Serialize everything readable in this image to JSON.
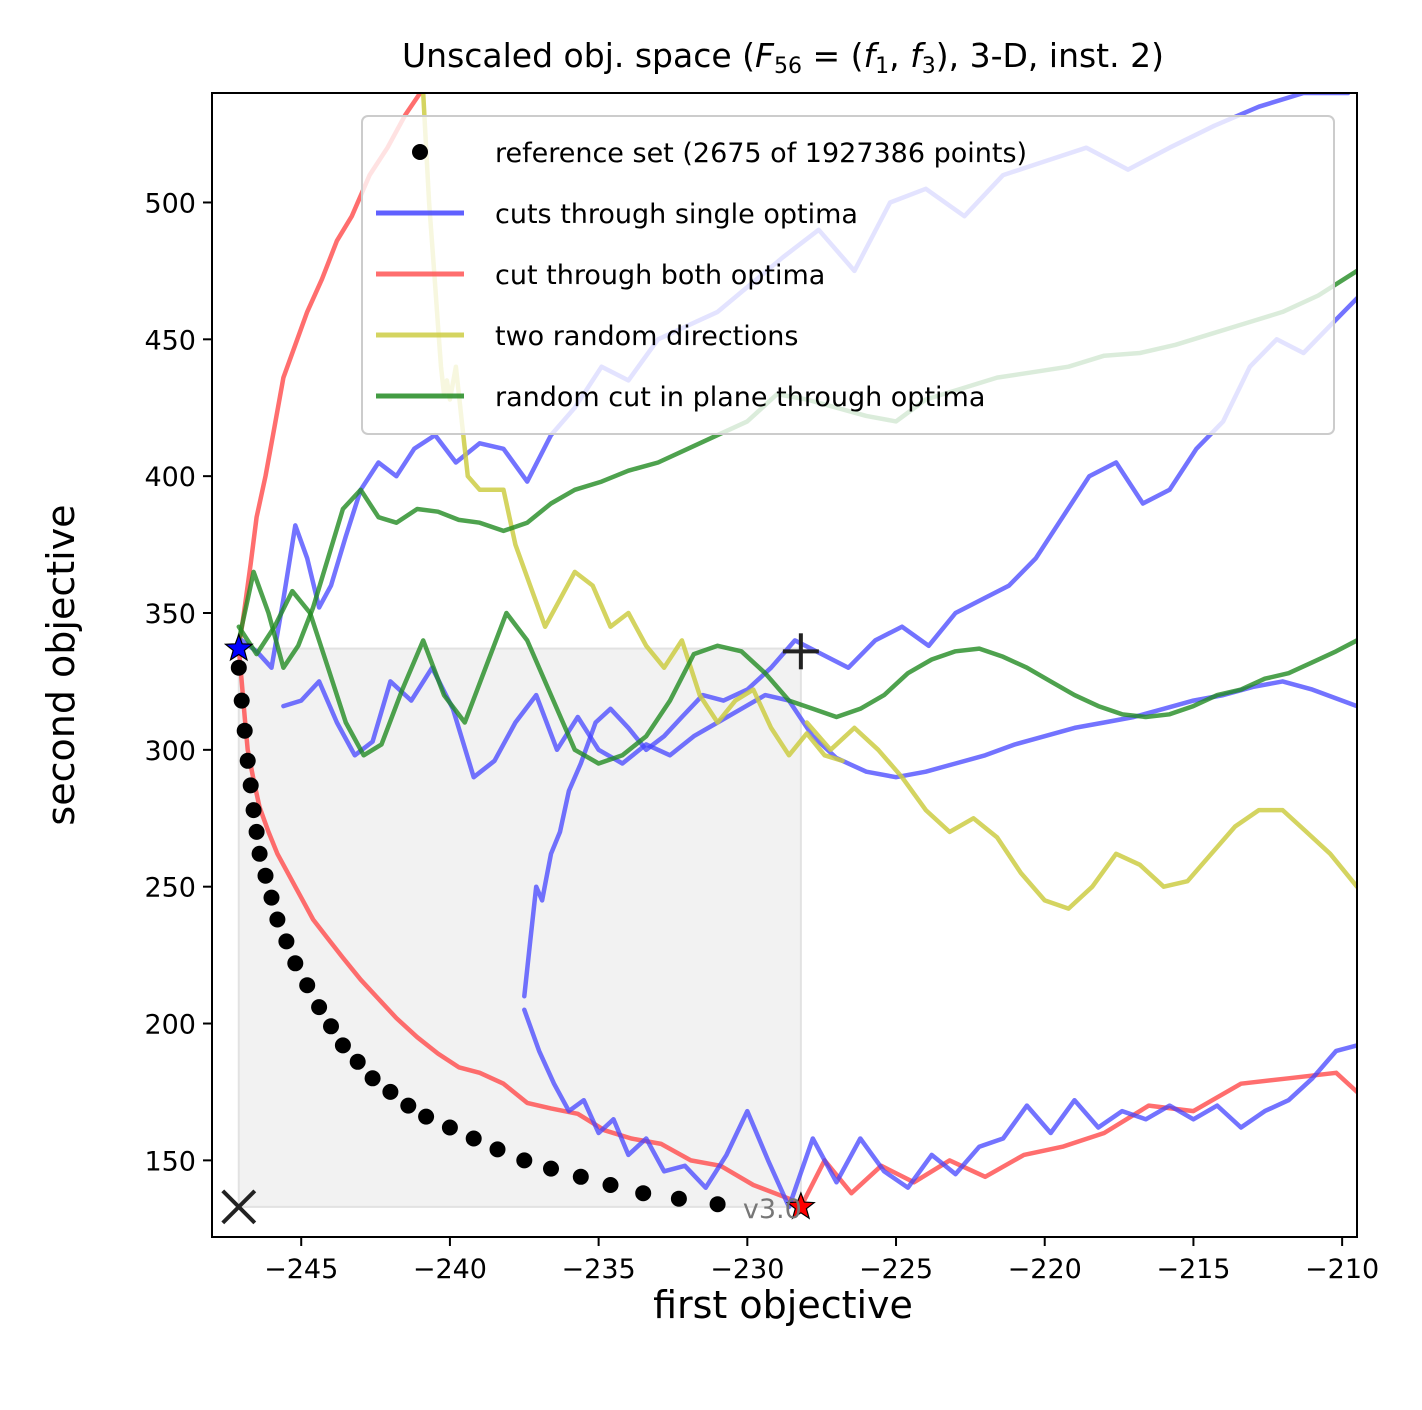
{
  "chart_data": {
    "type": "line",
    "title": "Unscaled obj. space (F56 = (f1, f3), 3-D, inst. 2)",
    "title_parts": {
      "prefix": "Unscaled obj. space (",
      "fn": "F",
      "fn_sub": "56",
      "eq": " = (",
      "f1": "f",
      "f1_sub": "1",
      "comma": ", ",
      "f3": "f",
      "f3_sub": "3",
      "suffix": "), 3-D, inst. 2)"
    },
    "xlabel": "first objective",
    "ylabel": "second objective",
    "xlim": [
      -248,
      -209.5
    ],
    "ylim": [
      122,
      540
    ],
    "xticks": [
      -245,
      -240,
      -235,
      -230,
      -225,
      -220,
      -215,
      -210
    ],
    "xtick_labels": [
      "−245",
      "−240",
      "−235",
      "−230",
      "−225",
      "−220",
      "−215",
      "−210"
    ],
    "yticks": [
      150,
      200,
      250,
      300,
      350,
      400,
      450,
      500
    ],
    "ytick_labels": [
      "150",
      "200",
      "250",
      "300",
      "350",
      "400",
      "450",
      "500"
    ],
    "legend_position": "upper-right",
    "legend": [
      {
        "label": "reference set (2675 of 1927386 points)",
        "kind": "marker",
        "color": "#000000"
      },
      {
        "label": "cuts through single optima",
        "kind": "line",
        "color": "#4444ff"
      },
      {
        "label": "cut through both optima",
        "kind": "line",
        "color": "#ff5555"
      },
      {
        "label": "two random directions",
        "kind": "line",
        "color": "#cccc44"
      },
      {
        "label": "random cut in plane through optima",
        "kind": "line",
        "color": "#228b22"
      }
    ],
    "annotation_text": "v3.0",
    "reference_box": {
      "x": [
        -247.1,
        -228.2
      ],
      "y": [
        133,
        337
      ],
      "color": "#f2f2f2"
    },
    "special_markers": {
      "optimum1": {
        "x": -247.1,
        "y": 337,
        "marker": "star",
        "color": "#0000ff"
      },
      "optimum2": {
        "x": -228.2,
        "y": 133,
        "marker": "star",
        "color": "#ff0000"
      },
      "ideal": {
        "x": -247.1,
        "y": 133,
        "marker": "x",
        "color": "#222222"
      },
      "nadir": {
        "x": -228.2,
        "y": 336,
        "marker": "plus",
        "color": "#222222"
      }
    },
    "reference_set": {
      "x": [
        -247.1,
        -247.0,
        -246.9,
        -246.8,
        -246.7,
        -246.6,
        -246.5,
        -246.4,
        -246.2,
        -246.0,
        -245.8,
        -245.5,
        -245.2,
        -244.8,
        -244.4,
        -244.0,
        -243.6,
        -243.1,
        -242.6,
        -242.0,
        -241.4,
        -240.8,
        -240.0,
        -239.2,
        -238.4,
        -237.5,
        -236.6,
        -235.6,
        -234.6,
        -233.5,
        -232.3,
        -231.0
      ],
      "y": [
        330,
        318,
        307,
        296,
        287,
        278,
        270,
        262,
        254,
        246,
        238,
        230,
        222,
        214,
        206,
        199,
        192,
        186,
        180,
        175,
        170,
        166,
        162,
        158,
        154,
        150,
        147,
        144,
        141,
        138,
        136,
        134
      ]
    },
    "series": [
      {
        "name": "cut through both optima (thin)",
        "color": "#ff5555",
        "width": 4.5,
        "opacity": 0.85,
        "x": [
          -247.1,
          -247.0,
          -246.9,
          -246.8,
          -246.6,
          -246.4,
          -246.1,
          -245.8,
          -245.4,
          -245.0,
          -244.6,
          -244.1,
          -243.6,
          -243.0,
          -242.4,
          -241.8,
          -241.1,
          -240.4,
          -239.7,
          -239.0,
          -238.2,
          -237.4,
          -236.6,
          -235.7,
          -234.8,
          -233.9,
          -232.9,
          -231.9,
          -230.9,
          -229.8,
          -228.6,
          -228.2,
          -227.4,
          -226.5,
          -225.5,
          -224.4,
          -223.2,
          -222.0,
          -220.7,
          -219.4,
          -218.0,
          -216.5,
          -215.0,
          -213.4,
          -211.8,
          -210.2,
          -209.5
        ],
        "y": [
          337,
          325,
          312,
          300,
          289,
          279,
          270,
          262,
          254,
          246,
          238,
          231,
          224,
          216,
          209,
          202,
          195,
          189,
          184,
          182,
          178,
          171,
          169,
          167,
          161,
          158,
          156,
          150,
          148,
          141,
          136,
          133,
          150,
          138,
          148,
          142,
          150,
          144,
          152,
          155,
          160,
          170,
          168,
          178,
          180,
          182,
          175
        ]
      },
      {
        "name": "cut through both optima (upper)",
        "color": "#ff5555",
        "width": 4.5,
        "opacity": 0.85,
        "x": [
          -247.1,
          -246.9,
          -246.7,
          -246.5,
          -246.2,
          -245.9,
          -245.6,
          -245.2,
          -244.8,
          -244.3,
          -243.8,
          -243.3,
          -242.7,
          -242.1,
          -241.5,
          -241.0
        ],
        "y": [
          337,
          352,
          368,
          385,
          400,
          418,
          436,
          448,
          460,
          472,
          486,
          495,
          510,
          520,
          532,
          540
        ]
      },
      {
        "name": "cuts through single optima (1)",
        "color": "#4444ff",
        "width": 4.5,
        "opacity": 0.75,
        "x": [
          -247.0,
          -246.5,
          -246.0,
          -245.6,
          -245.2,
          -244.8,
          -244.4,
          -244.0,
          -243.5,
          -243.0,
          -242.4,
          -241.8,
          -241.2,
          -240.5,
          -239.8,
          -239.0,
          -238.2,
          -237.4,
          -236.6,
          -235.8,
          -234.9,
          -234.0,
          -233.0,
          -232.0,
          -231.0,
          -229.9,
          -228.8,
          -227.6,
          -226.4,
          -225.2,
          -224.0,
          -222.7,
          -221.4,
          -220.0,
          -218.6,
          -217.2,
          -215.8,
          -214.3,
          -212.8,
          -211.3,
          -209.8
        ],
        "y": [
          340,
          336,
          330,
          355,
          382,
          370,
          352,
          360,
          378,
          395,
          405,
          400,
          410,
          415,
          405,
          412,
          410,
          398,
          415,
          425,
          440,
          435,
          450,
          455,
          460,
          470,
          480,
          490,
          475,
          500,
          505,
          495,
          510,
          515,
          520,
          512,
          520,
          528,
          535,
          540,
          540
        ]
      },
      {
        "name": "cuts through single optima (2)",
        "color": "#4444ff",
        "width": 4.5,
        "opacity": 0.75,
        "x": [
          -245.6,
          -245.0,
          -244.4,
          -243.8,
          -243.2,
          -242.6,
          -242.0,
          -241.3,
          -240.6,
          -239.9,
          -239.2,
          -238.5,
          -237.8,
          -237.1,
          -236.4,
          -235.7,
          -235.0,
          -234.2,
          -233.4,
          -232.6,
          -231.8,
          -231.0,
          -230.2,
          -229.4,
          -228.6,
          -227.8,
          -227.0,
          -226.0,
          -225.0,
          -224.0,
          -223.0,
          -222.0,
          -221.0,
          -220.0,
          -219.0,
          -218.0,
          -217.0,
          -216.0,
          -215.0,
          -214.0,
          -213.0,
          -212.0,
          -211.0,
          -210.0,
          -209.5
        ],
        "y": [
          316,
          318,
          325,
          310,
          298,
          303,
          325,
          318,
          330,
          315,
          290,
          296,
          310,
          320,
          300,
          312,
          300,
          295,
          302,
          298,
          305,
          310,
          315,
          320,
          318,
          305,
          297,
          292,
          290,
          292,
          295,
          298,
          302,
          305,
          308,
          310,
          312,
          315,
          318,
          320,
          323,
          325,
          322,
          318,
          316
        ]
      },
      {
        "name": "cuts through single optima (3)",
        "color": "#4444ff",
        "width": 4.5,
        "opacity": 0.75,
        "x": [
          -237.5,
          -237.3,
          -237.1,
          -236.9,
          -236.6,
          -236.3,
          -236.0,
          -235.6,
          -235.1,
          -234.6,
          -234.0,
          -233.4,
          -232.8,
          -232.2,
          -231.5,
          -230.8,
          -230.0,
          -229.2,
          -228.4,
          -227.5,
          -226.6,
          -225.7,
          -224.8,
          -223.9,
          -223.0,
          -222.1,
          -221.2,
          -220.3,
          -219.4,
          -218.5,
          -217.6,
          -216.7,
          -215.8,
          -214.9,
          -214.0,
          -213.1,
          -212.2,
          -211.3,
          -210.4,
          -209.5
        ],
        "y": [
          210,
          230,
          250,
          245,
          262,
          270,
          285,
          295,
          310,
          315,
          308,
          300,
          305,
          312,
          320,
          318,
          322,
          330,
          340,
          335,
          330,
          340,
          345,
          338,
          350,
          355,
          360,
          370,
          385,
          400,
          405,
          390,
          395,
          410,
          420,
          440,
          450,
          445,
          455,
          465
        ]
      },
      {
        "name": "cuts through single optima (4)",
        "color": "#4444ff",
        "width": 4.5,
        "opacity": 0.75,
        "x": [
          -237.5,
          -237.0,
          -236.5,
          -236.0,
          -235.5,
          -235.0,
          -234.5,
          -234.0,
          -233.4,
          -232.8,
          -232.1,
          -231.4,
          -230.7,
          -230.0,
          -229.3,
          -228.6,
          -227.8,
          -227.0,
          -226.2,
          -225.4,
          -224.6,
          -223.8,
          -223.0,
          -222.2,
          -221.4,
          -220.6,
          -219.8,
          -219.0,
          -218.2,
          -217.4,
          -216.6,
          -215.8,
          -215.0,
          -214.2,
          -213.4,
          -212.6,
          -211.8,
          -211.0,
          -210.2,
          -209.5
        ],
        "y": [
          205,
          190,
          178,
          168,
          172,
          160,
          165,
          152,
          158,
          146,
          148,
          140,
          152,
          168,
          150,
          133,
          158,
          142,
          158,
          146,
          140,
          152,
          145,
          155,
          158,
          170,
          160,
          172,
          162,
          168,
          165,
          170,
          165,
          170,
          162,
          168,
          172,
          180,
          190,
          192
        ]
      },
      {
        "name": "two random directions (1)",
        "color": "#cccc44",
        "width": 4.5,
        "opacity": 0.85,
        "x": [
          -240.9,
          -240.8,
          -240.7,
          -240.6,
          -240.5,
          -240.4,
          -240.3,
          -240.2,
          -240.1,
          -240.0,
          -239.8,
          -239.6,
          -239.4,
          -239.0,
          -238.6,
          -238.2,
          -237.8,
          -237.3,
          -236.8,
          -236.3,
          -235.8,
          -235.2,
          -234.6,
          -234.0,
          -233.4,
          -232.8,
          -232.2,
          -231.6,
          -231.0,
          -230.4,
          -229.8,
          -229.2,
          -228.6,
          -228.0,
          -227.4,
          -226.8
        ],
        "y": [
          540,
          520,
          500,
          485,
          470,
          455,
          440,
          430,
          435,
          428,
          440,
          420,
          400,
          395,
          395,
          395,
          375,
          360,
          345,
          355,
          365,
          360,
          345,
          350,
          338,
          330,
          340,
          320,
          310,
          318,
          322,
          308,
          298,
          306,
          298,
          296
        ]
      },
      {
        "name": "two random directions (2)",
        "color": "#cccc44",
        "width": 4.5,
        "opacity": 0.85,
        "x": [
          -228.0,
          -227.2,
          -226.4,
          -225.6,
          -224.8,
          -224.0,
          -223.2,
          -222.4,
          -221.6,
          -220.8,
          -220.0,
          -219.2,
          -218.4,
          -217.6,
          -216.8,
          -216.0,
          -215.2,
          -214.4,
          -213.6,
          -212.8,
          -212.0,
          -211.2,
          -210.4,
          -209.5
        ],
        "y": [
          310,
          300,
          308,
          300,
          290,
          278,
          270,
          275,
          268,
          255,
          245,
          242,
          250,
          262,
          258,
          250,
          252,
          262,
          272,
          278,
          278,
          270,
          262,
          250
        ]
      },
      {
        "name": "random cut in plane through optima (1)",
        "color": "#228b22",
        "width": 4.5,
        "opacity": 0.8,
        "x": [
          -247.1,
          -246.6,
          -246.1,
          -245.6,
          -245.1,
          -244.6,
          -244.1,
          -243.6,
          -243.0,
          -242.4,
          -241.8,
          -241.1,
          -240.4,
          -239.7,
          -239.0,
          -238.2,
          -237.4,
          -236.6,
          -235.8,
          -234.9,
          -234.0,
          -233.0,
          -232.0,
          -231.0,
          -230.0,
          -229.0,
          -228.0,
          -227.0,
          -226.0,
          -225.0,
          -224.0,
          -222.8,
          -221.6,
          -220.4,
          -219.2,
          -218.0,
          -216.8,
          -215.6,
          -214.4,
          -213.2,
          -212.0,
          -210.8,
          -209.5
        ],
        "y": [
          340,
          365,
          350,
          330,
          338,
          352,
          370,
          388,
          395,
          385,
          383,
          388,
          387,
          384,
          383,
          380,
          383,
          390,
          395,
          398,
          402,
          405,
          410,
          415,
          420,
          430,
          428,
          425,
          422,
          420,
          428,
          432,
          436,
          438,
          440,
          444,
          445,
          448,
          452,
          456,
          460,
          466,
          475
        ]
      },
      {
        "name": "random cut in plane through optima (2)",
        "color": "#228b22",
        "width": 4.5,
        "opacity": 0.8,
        "x": [
          -247.1,
          -246.5,
          -245.9,
          -245.3,
          -244.7,
          -244.1,
          -243.5,
          -242.9,
          -242.3,
          -241.6,
          -240.9,
          -240.2,
          -239.5,
          -238.8,
          -238.1,
          -237.4,
          -236.6,
          -235.8,
          -235.0,
          -234.2,
          -233.4,
          -232.6,
          -231.8,
          -231.0,
          -230.2,
          -229.4,
          -228.6,
          -227.8,
          -227.0,
          -226.2,
          -225.4,
          -224.6,
          -223.8,
          -223.0,
          -222.2,
          -221.4,
          -220.6,
          -219.8,
          -219.0,
          -218.2,
          -217.4,
          -216.6,
          -215.8,
          -215.0,
          -214.2,
          -213.4,
          -212.6,
          -211.8,
          -211.0,
          -210.2,
          -209.5
        ],
        "y": [
          345,
          335,
          345,
          358,
          350,
          330,
          310,
          298,
          302,
          322,
          340,
          320,
          310,
          330,
          350,
          340,
          320,
          300,
          295,
          298,
          305,
          318,
          335,
          338,
          336,
          328,
          318,
          315,
          312,
          315,
          320,
          328,
          333,
          336,
          337,
          334,
          330,
          325,
          320,
          316,
          313,
          312,
          313,
          316,
          320,
          322,
          326,
          328,
          332,
          336,
          340
        ]
      }
    ]
  }
}
